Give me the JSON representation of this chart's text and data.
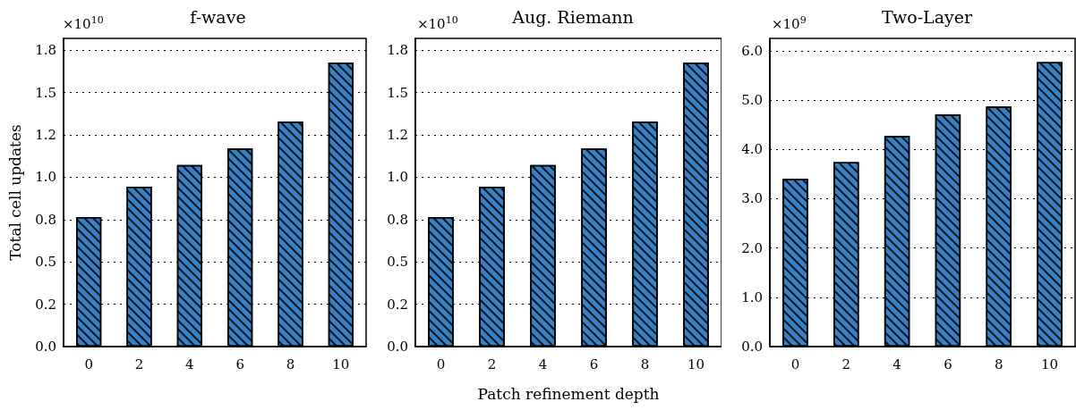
{
  "chart_data": [
    {
      "type": "bar",
      "title": "f-wave",
      "ylabel": "Total cell updates",
      "annotations": [
        "×10$^{10}$"
      ],
      "categories": [
        "0",
        "2",
        "4",
        "6",
        "8",
        "10"
      ],
      "series": [
        {
          "color": "#3a80c4",
          "values": [
            0.765,
            0.944,
            1.072,
            1.17,
            1.329,
            1.678
          ]
        }
      ],
      "ylim": [
        0,
        1.82
      ],
      "yticks": [
        {
          "value": 0,
          "label": "0.0"
        },
        {
          "value": 0.25,
          "label": "0.2"
        },
        {
          "value": 0.5,
          "label": "0.5"
        },
        {
          "value": 0.75,
          "label": "0.8"
        },
        {
          "value": 1,
          "label": "1.0"
        },
        {
          "value": 1.25,
          "label": "1.2"
        },
        {
          "value": 1.5,
          "label": "1.5"
        },
        {
          "value": 1.75,
          "label": "1.8"
        }
      ],
      "grid": "y"
    },
    {
      "type": "bar",
      "title": "Aug. Riemann",
      "xlabel": "Patch refinement depth",
      "annotations": [
        "×10$^{10}$"
      ],
      "categories": [
        "0",
        "2",
        "4",
        "6",
        "8",
        "10"
      ],
      "series": [
        {
          "color": "#3a80c4",
          "values": [
            0.765,
            0.944,
            1.072,
            1.17,
            1.329,
            1.678
          ]
        }
      ],
      "ylim": [
        0,
        1.82
      ],
      "yticks": [
        {
          "value": 0,
          "label": "0.0"
        },
        {
          "value": 0.25,
          "label": "0.2"
        },
        {
          "value": 0.5,
          "label": "0.5"
        },
        {
          "value": 0.75,
          "label": "0.8"
        },
        {
          "value": 1,
          "label": "1.0"
        },
        {
          "value": 1.25,
          "label": "1.2"
        },
        {
          "value": 1.5,
          "label": "1.5"
        },
        {
          "value": 1.75,
          "label": "1.8"
        }
      ],
      "grid": "y"
    },
    {
      "type": "bar",
      "title": "Two-Layer",
      "annotations": [
        "×10$^{9}$"
      ],
      "categories": [
        "0",
        "2",
        "4",
        "6",
        "8",
        "10"
      ],
      "series": [
        {
          "color": "#3a80c4",
          "values": [
            3.4,
            3.74,
            4.27,
            4.71,
            4.87,
            5.77
          ]
        }
      ],
      "ylim": [
        0,
        6.25
      ],
      "yticks": [
        {
          "value": 0,
          "label": "0.0"
        },
        {
          "value": 1,
          "label": "1.0"
        },
        {
          "value": 2,
          "label": "2.0"
        },
        {
          "value": 3,
          "label": "3.0"
        },
        {
          "value": 4,
          "label": "4.0"
        },
        {
          "value": 5,
          "label": "5.0"
        },
        {
          "value": 6,
          "label": "6.0"
        }
      ],
      "grid": "y"
    }
  ]
}
